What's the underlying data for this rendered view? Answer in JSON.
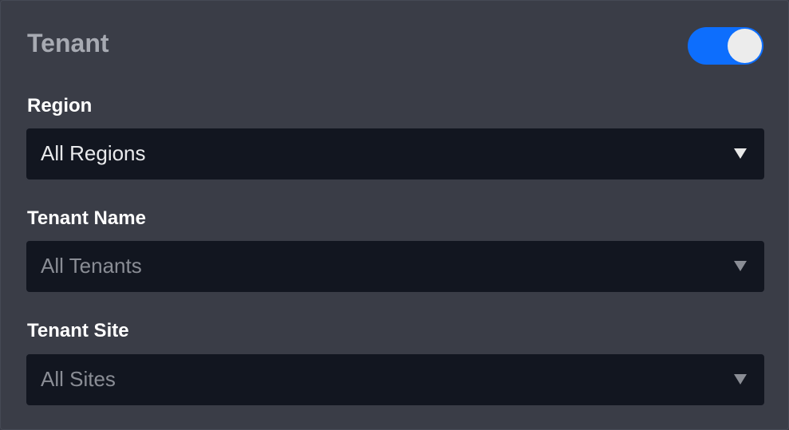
{
  "header": {
    "title": "Tenant",
    "toggle_on": true,
    "toggle_color": "#0d6efd"
  },
  "fields": [
    {
      "label": "Region",
      "value": "All Regions",
      "enabled": true
    },
    {
      "label": "Tenant Name",
      "value": "All Tenants",
      "enabled": false
    },
    {
      "label": "Tenant Site",
      "value": "All Sites",
      "enabled": false
    }
  ]
}
